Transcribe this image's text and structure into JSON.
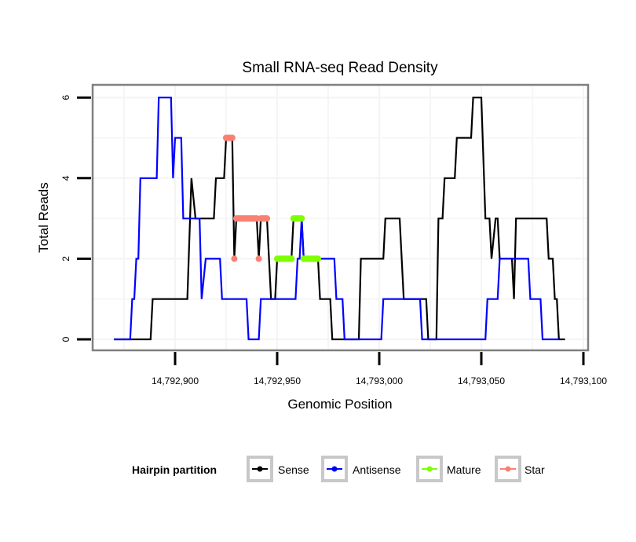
{
  "chart_data": {
    "type": "line",
    "title": "Small RNA-seq Read Density",
    "xlabel": "Genomic Position",
    "ylabel": "Total Reads",
    "xlim": [
      14792865,
      14793106
    ],
    "ylim": [
      -0.25,
      6.3
    ],
    "x_ticks": [
      14792900,
      14792950,
      14793000,
      14793050,
      14793100
    ],
    "x_tick_labels": [
      "14,792,900",
      "14,792,950",
      "14,793,000",
      "14,793,050",
      "14,793,100"
    ],
    "y_ticks": [
      0,
      2,
      4,
      6
    ],
    "y_tick_labels": [
      "0",
      "2",
      "4",
      "6"
    ],
    "grid": true,
    "legend": {
      "title": "Hairpin partition",
      "placement": "bottom",
      "entries": [
        {
          "name": "Sense",
          "color": "#000000"
        },
        {
          "name": "Antisense",
          "color": "#0000ff"
        },
        {
          "name": "Mature",
          "color": "#7fff00"
        },
        {
          "name": "Star",
          "color": "#fa8072"
        }
      ]
    },
    "series": [
      {
        "name": "Sense",
        "color": "#000000",
        "kind": "line",
        "points": [
          [
            14792870,
            0
          ],
          [
            14792888,
            0
          ],
          [
            14792889,
            1
          ],
          [
            14792906,
            1
          ],
          [
            14792908,
            4
          ],
          [
            14792910,
            3
          ],
          [
            14792919,
            3
          ],
          [
            14792920,
            4
          ],
          [
            14792924,
            4
          ],
          [
            14792925,
            5
          ],
          [
            14792928,
            5
          ],
          [
            14792929,
            2
          ],
          [
            14792930,
            3
          ],
          [
            14792940,
            3
          ],
          [
            14792941,
            2
          ],
          [
            14792942,
            3
          ],
          [
            14792945,
            3
          ],
          [
            14792947,
            1
          ],
          [
            14792949,
            1
          ],
          [
            14792950,
            2
          ],
          [
            14792957,
            2
          ],
          [
            14792958,
            3
          ],
          [
            14792962,
            3
          ],
          [
            14792963,
            2
          ],
          [
            14792970,
            2
          ],
          [
            14792971,
            1
          ],
          [
            14792976,
            1
          ],
          [
            14792977,
            0
          ],
          [
            14792990,
            0
          ],
          [
            14792991,
            2
          ],
          [
            14793002,
            2
          ],
          [
            14793003,
            3
          ],
          [
            14793010,
            3
          ],
          [
            14793012,
            1
          ],
          [
            14793023,
            1
          ],
          [
            14793024,
            0
          ],
          [
            14793028,
            0
          ],
          [
            14793029,
            3
          ],
          [
            14793031,
            3
          ],
          [
            14793032,
            4
          ],
          [
            14793037,
            4
          ],
          [
            14793038,
            5
          ],
          [
            14793045,
            5
          ],
          [
            14793046,
            6
          ],
          [
            14793050,
            6
          ],
          [
            14793052,
            3
          ],
          [
            14793054,
            3
          ],
          [
            14793055,
            2
          ],
          [
            14793057,
            3
          ],
          [
            14793058,
            3
          ],
          [
            14793059,
            2
          ],
          [
            14793065,
            2
          ],
          [
            14793066,
            1
          ],
          [
            14793067,
            3
          ],
          [
            14793082,
            3
          ],
          [
            14793083,
            2
          ],
          [
            14793085,
            2
          ],
          [
            14793086,
            1
          ],
          [
            14793087,
            1
          ],
          [
            14793088,
            0
          ],
          [
            14793091,
            0
          ]
        ]
      },
      {
        "name": "Antisense",
        "color": "#0000ff",
        "kind": "line",
        "points": [
          [
            14792870,
            0
          ],
          [
            14792878,
            0
          ],
          [
            14792879,
            1
          ],
          [
            14792880,
            1
          ],
          [
            14792881,
            2
          ],
          [
            14792882,
            2
          ],
          [
            14792883,
            4
          ],
          [
            14792891,
            4
          ],
          [
            14792892,
            6
          ],
          [
            14792898,
            6
          ],
          [
            14792899,
            4
          ],
          [
            14792900,
            5
          ],
          [
            14792903,
            5
          ],
          [
            14792904,
            3
          ],
          [
            14792912,
            3
          ],
          [
            14792913,
            1
          ],
          [
            14792915,
            2
          ],
          [
            14792922,
            2
          ],
          [
            14792923,
            1
          ],
          [
            14792935,
            1
          ],
          [
            14792936,
            0
          ],
          [
            14792941,
            0
          ],
          [
            14792942,
            1
          ],
          [
            14792959,
            1
          ],
          [
            14792960,
            2
          ],
          [
            14792961,
            2
          ],
          [
            14792962,
            3
          ],
          [
            14792963,
            2
          ],
          [
            14792978,
            2
          ],
          [
            14792979,
            1
          ],
          [
            14792982,
            1
          ],
          [
            14792983,
            0
          ],
          [
            14793001,
            0
          ],
          [
            14793002,
            1
          ],
          [
            14793020,
            1
          ],
          [
            14793021,
            0
          ],
          [
            14793052,
            0
          ],
          [
            14793053,
            1
          ],
          [
            14793058,
            1
          ],
          [
            14793059,
            2
          ],
          [
            14793073,
            2
          ],
          [
            14793074,
            1
          ],
          [
            14793079,
            1
          ],
          [
            14793080,
            0
          ],
          [
            14793088,
            0
          ]
        ]
      },
      {
        "name": "Mature",
        "color": "#7fff00",
        "kind": "points",
        "points": [
          [
            14792950,
            2
          ],
          [
            14792951,
            2
          ],
          [
            14792952,
            2
          ],
          [
            14792953,
            2
          ],
          [
            14792954,
            2
          ],
          [
            14792955,
            2
          ],
          [
            14792956,
            2
          ],
          [
            14792957,
            2
          ],
          [
            14792958,
            3
          ],
          [
            14792959,
            3
          ],
          [
            14792960,
            3
          ],
          [
            14792961,
            3
          ],
          [
            14792962,
            3
          ],
          [
            14792963,
            2
          ],
          [
            14792964,
            2
          ],
          [
            14792965,
            2
          ],
          [
            14792966,
            2
          ],
          [
            14792967,
            2
          ],
          [
            14792968,
            2
          ],
          [
            14792969,
            2
          ],
          [
            14792970,
            2
          ]
        ]
      },
      {
        "name": "Star",
        "color": "#fa8072",
        "kind": "points",
        "points": [
          [
            14792925,
            5
          ],
          [
            14792926,
            5
          ],
          [
            14792927,
            5
          ],
          [
            14792928,
            5
          ],
          [
            14792929,
            2
          ],
          [
            14792930,
            3
          ],
          [
            14792931,
            3
          ],
          [
            14792932,
            3
          ],
          [
            14792933,
            3
          ],
          [
            14792934,
            3
          ],
          [
            14792935,
            3
          ],
          [
            14792936,
            3
          ],
          [
            14792937,
            3
          ],
          [
            14792938,
            3
          ],
          [
            14792939,
            3
          ],
          [
            14792940,
            3
          ],
          [
            14792941,
            2
          ],
          [
            14792942,
            3
          ],
          [
            14792943,
            3
          ],
          [
            14792944,
            3
          ],
          [
            14792945,
            3
          ]
        ]
      }
    ]
  }
}
